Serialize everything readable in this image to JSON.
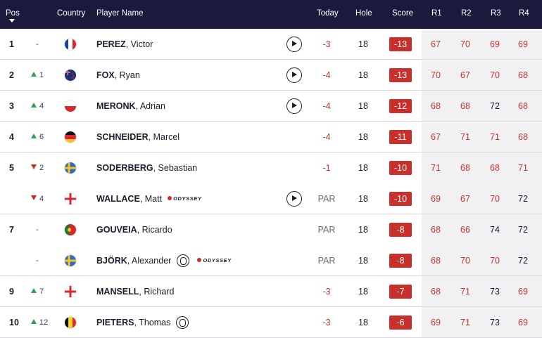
{
  "header": {
    "pos": "Pos",
    "country": "Country",
    "player": "Player Name",
    "today": "Today",
    "hole": "Hole",
    "score": "Score",
    "r1": "R1",
    "r2": "R2",
    "r3": "R3",
    "r4": "R4"
  },
  "rows": [
    {
      "pos": "1",
      "move_dir": "none",
      "move": "-",
      "flag": "France",
      "last": "PEREZ",
      "first": "Victor",
      "play": true,
      "today": "-3",
      "hole": "18",
      "score": "-13",
      "r1": "67",
      "r2": "70",
      "r3": "69",
      "r4": "69",
      "red": [
        1,
        1,
        1,
        1
      ]
    },
    {
      "pos": "2",
      "move_dir": "up",
      "move": "1",
      "flag": "New Zealand",
      "last": "FOX",
      "first": "Ryan",
      "play": true,
      "today": "-4",
      "hole": "18",
      "score": "-13",
      "r1": "70",
      "r2": "67",
      "r3": "70",
      "r4": "68",
      "red": [
        1,
        1,
        1,
        1
      ]
    },
    {
      "pos": "3",
      "move_dir": "up",
      "move": "4",
      "flag": "Poland",
      "last": "MERONK",
      "first": "Adrian",
      "play": true,
      "today": "-4",
      "hole": "18",
      "score": "-12",
      "r1": "68",
      "r2": "68",
      "r3": "72",
      "r4": "68",
      "red": [
        1,
        1,
        0,
        1
      ]
    },
    {
      "pos": "4",
      "move_dir": "up",
      "move": "6",
      "flag": "Germany",
      "last": "SCHNEIDER",
      "first": "Marcel",
      "play": false,
      "today": "-4",
      "hole": "18",
      "score": "-11",
      "r1": "67",
      "r2": "71",
      "r3": "71",
      "r4": "68",
      "red": [
        1,
        1,
        1,
        1
      ]
    },
    {
      "pos": "5",
      "move_dir": "down",
      "move": "2",
      "flag": "Sweden",
      "last": "SODERBERG",
      "first": "Sebastian",
      "play": false,
      "today": "-1",
      "hole": "18",
      "score": "-10",
      "r1": "71",
      "r2": "68",
      "r3": "68",
      "r4": "71",
      "red": [
        1,
        1,
        1,
        1
      ]
    },
    {
      "pos": "",
      "move_dir": "down",
      "move": "4",
      "flag": "England",
      "last": "WALLACE",
      "first": "Matt",
      "sponsor": "ODYSSEY",
      "play": true,
      "today": "PAR",
      "hole": "18",
      "score": "-10",
      "r1": "69",
      "r2": "67",
      "r3": "70",
      "r4": "72",
      "red": [
        1,
        1,
        1,
        0
      ]
    },
    {
      "pos": "7",
      "move_dir": "none",
      "move": "-",
      "flag": "Portugal",
      "last": "GOUVEIA",
      "first": "Ricardo",
      "play": false,
      "today": "PAR",
      "hole": "18",
      "score": "-8",
      "r1": "68",
      "r2": "66",
      "r3": "74",
      "r4": "72",
      "red": [
        1,
        1,
        0,
        0
      ]
    },
    {
      "pos": "",
      "move_dir": "none",
      "move": "-",
      "flag": "Sweden",
      "last": "BJÖRK",
      "first": "Alexander",
      "open_logo": true,
      "sponsor": "ODYSSEY",
      "play": false,
      "today": "PAR",
      "hole": "18",
      "score": "-8",
      "r1": "68",
      "r2": "70",
      "r3": "70",
      "r4": "72",
      "red": [
        1,
        1,
        1,
        0
      ]
    },
    {
      "pos": "9",
      "move_dir": "up",
      "move": "7",
      "flag": "England",
      "last": "MANSELL",
      "first": "Richard",
      "play": false,
      "today": "-3",
      "hole": "18",
      "score": "-7",
      "r1": "68",
      "r2": "71",
      "r3": "73",
      "r4": "69",
      "red": [
        1,
        1,
        0,
        1
      ]
    },
    {
      "pos": "10",
      "move_dir": "up",
      "move": "12",
      "flag": "Belgium",
      "last": "PIETERS",
      "first": "Thomas",
      "open_logo": true,
      "play": false,
      "today": "-3",
      "hole": "18",
      "score": "-6",
      "r1": "69",
      "r2": "71",
      "r3": "73",
      "r4": "69",
      "red": [
        1,
        1,
        0,
        1
      ]
    }
  ],
  "colors": {
    "header_bg": "#1b1a3d",
    "score_bg": "#c9302c",
    "under_par": "#c83329",
    "move_up": "#2e9f4a",
    "move_down": "#d02a23"
  }
}
